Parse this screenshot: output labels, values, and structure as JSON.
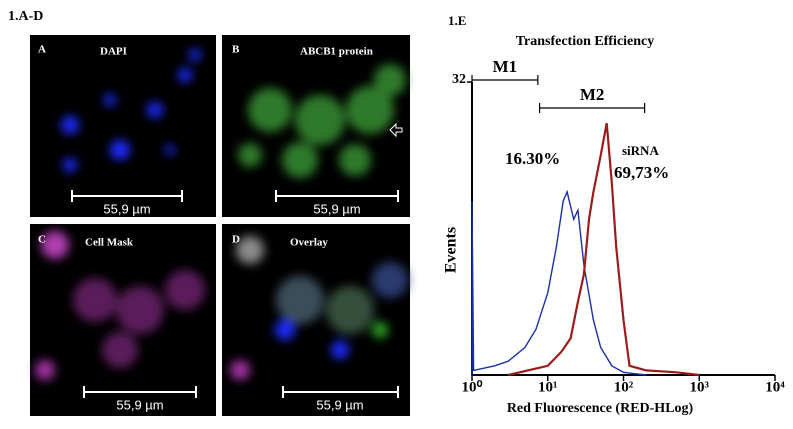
{
  "figure_a_d": {
    "label": "1.A-D",
    "panels": [
      {
        "letter": "A",
        "title": "DAPI",
        "scale": "55,9 µm"
      },
      {
        "letter": "B",
        "title": "ABCB1 protein",
        "scale": "55,9 µm"
      },
      {
        "letter": "C",
        "title": "Cell Mask",
        "scale": "55,9 µm"
      },
      {
        "letter": "D",
        "title": "Overlay",
        "scale": "55,9 µm"
      }
    ]
  },
  "chart_data": {
    "type": "line",
    "panel_label": "1.E",
    "title": "Transfection Efficiency",
    "x_label": "Red Fluorescence (RED-HLog)",
    "y_label": "Events",
    "log_x": true,
    "xlim": [
      1,
      10000
    ],
    "xticks": [
      {
        "value": 1,
        "label": "10⁰"
      },
      {
        "value": 10,
        "label": "10¹"
      },
      {
        "value": 100,
        "label": "10²"
      },
      {
        "value": 1000,
        "label": "10³"
      },
      {
        "value": 10000,
        "label": "10⁴"
      }
    ],
    "ylim": [
      0,
      32
    ],
    "yticks": [
      32
    ],
    "markers": [
      {
        "label": "M1",
        "range": [
          1,
          7.4
        ]
      },
      {
        "label": "M2",
        "range": [
          7.8,
          190
        ]
      }
    ],
    "annotations": [
      "16.30%",
      "69,73%"
    ],
    "series": [
      {
        "color": "#1a2fa8",
        "x": [
          1,
          1,
          1.05,
          2,
          3,
          5,
          7,
          10,
          13,
          16,
          18,
          22,
          25,
          30,
          40,
          50,
          70,
          100,
          200
        ],
        "values": [
          0,
          19,
          0.5,
          1,
          1.5,
          3,
          5,
          9,
          14,
          19,
          20,
          17,
          18,
          12,
          6,
          3,
          1,
          0.3,
          0
        ]
      },
      {
        "name": "siRNA",
        "color": "#9b1b1b",
        "x": [
          3,
          10,
          15,
          20,
          25,
          30,
          35,
          40,
          50,
          60,
          70,
          80,
          100,
          120,
          200,
          500,
          1000
        ],
        "values": [
          0,
          1,
          2.5,
          4,
          8,
          11,
          17,
          20,
          24,
          27.5,
          21,
          14,
          6,
          1,
          0.5,
          0.3,
          0
        ]
      }
    ]
  }
}
